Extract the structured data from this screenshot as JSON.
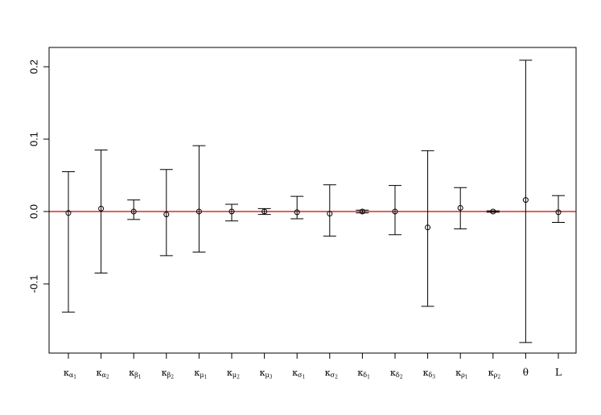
{
  "chart_data": {
    "type": "errorbar",
    "title": "",
    "xlabel": "",
    "ylabel": "",
    "ylim": [
      -0.2,
      0.2
    ],
    "yticks": [
      -0.1,
      0.0,
      0.1,
      0.2
    ],
    "ytick_labels": [
      "-0.1",
      "0.0",
      "0.1",
      "0.2"
    ],
    "reference_line": {
      "y": 0,
      "color": "#cc0000"
    },
    "grid": false,
    "categories": [
      {
        "symbol": "κ",
        "sub": "α",
        "subsub": "1"
      },
      {
        "symbol": "κ",
        "sub": "α",
        "subsub": "2"
      },
      {
        "symbol": "κ",
        "sub": "β",
        "subsub": "1"
      },
      {
        "symbol": "κ",
        "sub": "β",
        "subsub": "2"
      },
      {
        "symbol": "κ",
        "sub": "μ",
        "subsub": "1"
      },
      {
        "symbol": "κ",
        "sub": "μ",
        "subsub": "2"
      },
      {
        "symbol": "κ",
        "sub": "μ",
        "subsub": "3"
      },
      {
        "symbol": "κ",
        "sub": "σ",
        "subsub": "1"
      },
      {
        "symbol": "κ",
        "sub": "σ",
        "subsub": "2"
      },
      {
        "symbol": "κ",
        "sub": "δ",
        "subsub": "1"
      },
      {
        "symbol": "κ",
        "sub": "δ",
        "subsub": "2"
      },
      {
        "symbol": "κ",
        "sub": "δ",
        "subsub": "3"
      },
      {
        "symbol": "κ",
        "sub": "ρ",
        "subsub": "1"
      },
      {
        "symbol": "κ",
        "sub": "ρ",
        "subsub": "2"
      },
      {
        "symbol": "θ",
        "sub": "",
        "subsub": ""
      },
      {
        "symbol": "L",
        "sub": "",
        "subsub": ""
      }
    ],
    "points": [
      {
        "est": -0.002,
        "lower": -0.139,
        "upper": 0.055
      },
      {
        "est": 0.004,
        "lower": -0.085,
        "upper": 0.085
      },
      {
        "est": 0.0,
        "lower": -0.011,
        "upper": 0.016
      },
      {
        "est": -0.004,
        "lower": -0.061,
        "upper": 0.058
      },
      {
        "est": 0.0,
        "lower": -0.056,
        "upper": 0.091
      },
      {
        "est": 0.0,
        "lower": -0.013,
        "upper": 0.01
      },
      {
        "est": 0.0,
        "lower": -0.004,
        "upper": 0.004
      },
      {
        "est": -0.001,
        "lower": -0.01,
        "upper": 0.021
      },
      {
        "est": -0.003,
        "lower": -0.034,
        "upper": 0.037
      },
      {
        "est": 0.0,
        "lower": -0.002,
        "upper": 0.002
      },
      {
        "est": 0.0,
        "lower": -0.032,
        "upper": 0.036
      },
      {
        "est": -0.022,
        "lower": -0.131,
        "upper": 0.084
      },
      {
        "est": 0.005,
        "lower": -0.024,
        "upper": 0.033
      },
      {
        "est": 0.0,
        "lower": -0.001,
        "upper": 0.001
      },
      {
        "est": 0.016,
        "lower": -0.181,
        "upper": 0.209
      },
      {
        "est": -0.001,
        "lower": -0.015,
        "upper": 0.022
      }
    ]
  }
}
